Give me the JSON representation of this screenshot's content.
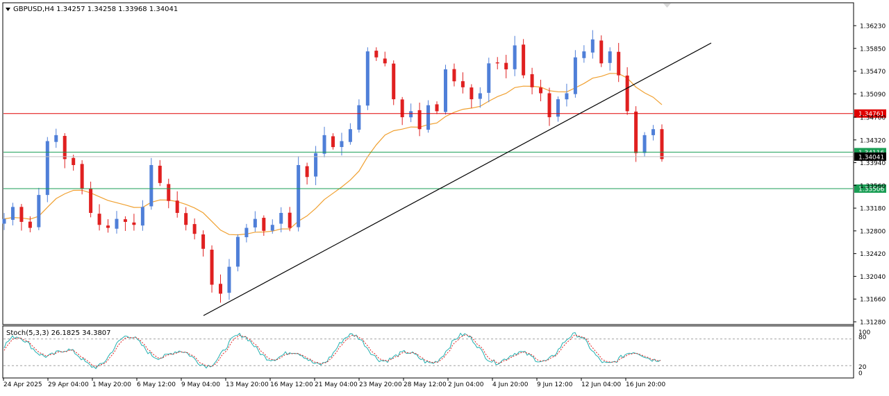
{
  "header": {
    "symbol_line": "GBPUSD,H4  1.34257 1.34258 1.33968 1.34041"
  },
  "indicator": {
    "label": "Stoch(5,3,3) 26.1825 34.3807",
    "scale_labels": [
      "100",
      "80",
      "20",
      "0"
    ]
  },
  "chart_data": [
    {
      "type": "candlestick",
      "symbol": "GBPUSD",
      "timeframe": "H4",
      "ohlc_last": {
        "open": 1.34257,
        "high": 1.34258,
        "low": 1.33968,
        "close": 1.34041
      },
      "ylim": [
        1.3128,
        1.3649
      ],
      "y_ticks": [
        "1.36230",
        "1.35850",
        "1.35470",
        "1.35090",
        "1.34700",
        "1.34320",
        "1.33940",
        "1.33560",
        "1.33180",
        "1.32800",
        "1.32420",
        "1.32040",
        "1.31660",
        "1.31280"
      ],
      "x_ticks": [
        "24 Apr 2025",
        "29 Apr 04:00",
        "1 May 20:00",
        "6 May 12:00",
        "9 May 04:00",
        "13 May 20:00",
        "16 May 12:00",
        "21 May 04:00",
        "23 May 20:00",
        "28 May 12:00",
        "2 Jun 04:00",
        "4 Jun 20:00",
        "9 Jun 12:00",
        "12 Jun 04:00",
        "16 Jun 20:00"
      ],
      "horizontal_levels": [
        {
          "label": "1.34761",
          "value": 1.34761,
          "color": "#e00000"
        },
        {
          "label": "1.34116",
          "value": 1.34116,
          "color": "#1a9e55"
        },
        {
          "label": "1.34041",
          "value": 1.34041,
          "color": "#000000",
          "current_price": true
        },
        {
          "label": "1.33506",
          "value": 1.33506,
          "color": "#1a9e55"
        }
      ],
      "trendline": {
        "from": [
          0.07,
          1.3137
        ],
        "to": [
          0.257,
          1.359
        ]
      },
      "moving_average": {
        "color": "#f0a030"
      },
      "bull_color": "#4f7fd8",
      "bear_color": "#e02020",
      "closes": [
        1.33,
        1.332,
        1.3295,
        1.3285,
        1.334,
        1.343,
        1.344,
        1.34,
        1.339,
        1.335,
        1.331,
        1.329,
        1.3285,
        1.33,
        1.3295,
        1.329,
        1.332,
        1.339,
        1.336,
        1.333,
        1.331,
        1.329,
        1.3275,
        1.325,
        1.319,
        1.3175,
        1.322,
        1.327,
        1.3285,
        1.33,
        1.328,
        1.329,
        1.331,
        1.3285,
        1.339,
        1.337,
        1.341,
        1.344,
        1.342,
        1.343,
        1.345,
        1.349,
        1.358,
        1.357,
        1.356,
        1.35,
        1.347,
        1.348,
        1.345,
        1.349,
        1.348,
        1.355,
        1.353,
        1.352,
        1.35,
        1.351,
        1.356,
        1.356,
        1.355,
        1.359,
        1.354,
        1.352,
        1.351,
        1.347,
        1.35,
        1.351,
        1.357,
        1.358,
        1.36,
        1.356,
        1.358,
        1.354,
        1.348,
        1.341,
        1.344,
        1.345,
        1.34
      ],
      "stochastic": {
        "type": "line",
        "name": "Stoch(5,3,3)",
        "main_last": 26.1825,
        "signal_last": 34.3807,
        "ylim": [
          0,
          100
        ],
        "levels": [
          20,
          80
        ],
        "main_color": "#20b0b0",
        "signal_color": "#e02020"
      }
    }
  ]
}
